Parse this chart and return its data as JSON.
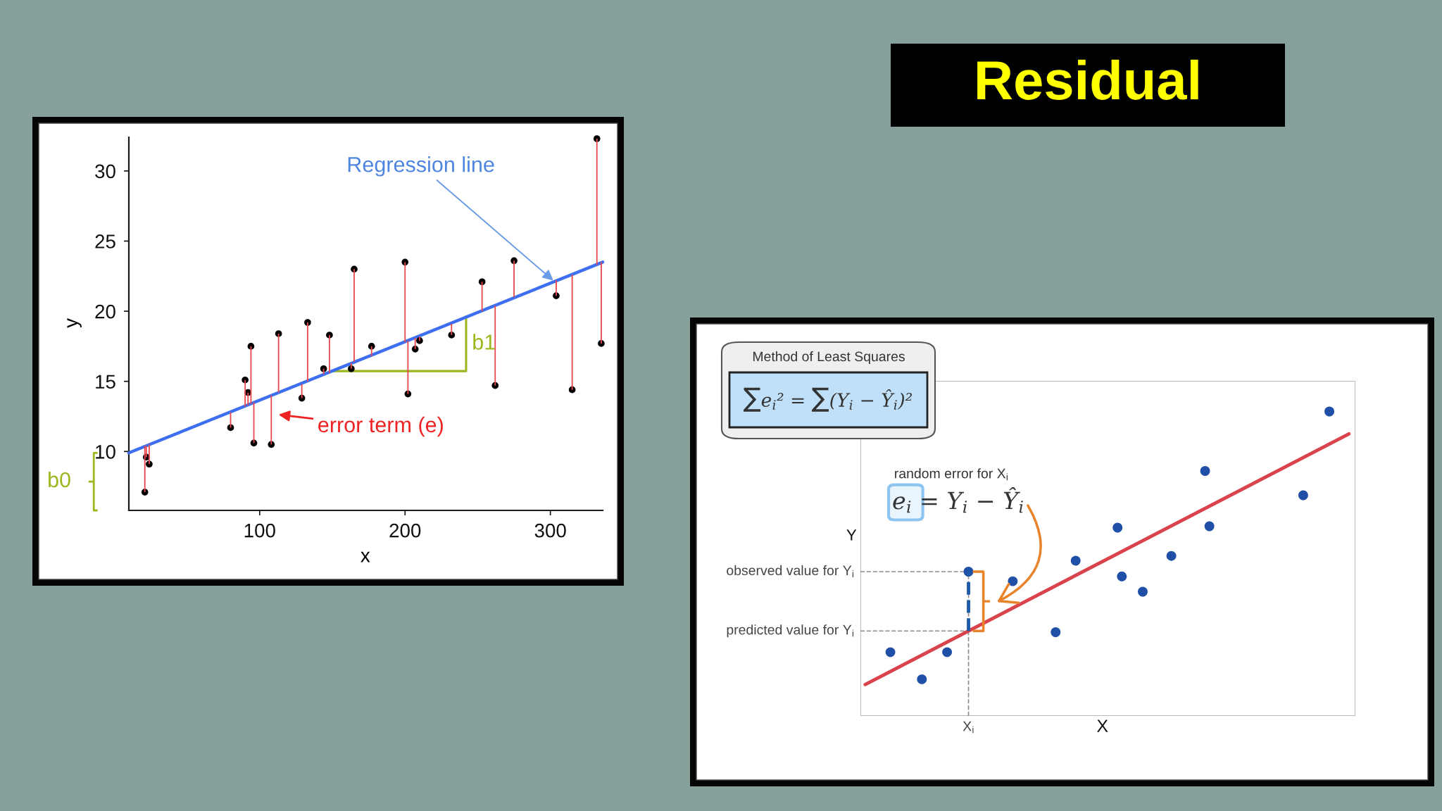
{
  "chart_data": [
    {
      "type": "other",
      "title": "Residual"
    },
    {
      "type": "scatter",
      "xlabel": "x",
      "ylabel": "y",
      "xlim": [
        10,
        336
      ],
      "ylim": [
        5.8,
        32.4
      ],
      "xticks": [
        100,
        200,
        300
      ],
      "yticks": [
        10,
        15,
        20,
        25,
        30
      ],
      "series": [
        {
          "type": "scatter",
          "color": "#000000",
          "marker": "circle",
          "x": [
            21,
            22,
            24,
            80,
            90,
            92,
            94,
            96,
            108,
            113,
            129,
            133,
            144,
            148,
            163,
            165,
            177,
            200,
            202,
            207,
            210,
            232,
            253,
            262,
            275,
            304,
            315,
            332,
            335
          ],
          "values": [
            7.1,
            9.6,
            9.1,
            11.7,
            15.1,
            14.2,
            17.5,
            10.6,
            10.5,
            18.4,
            13.8,
            19.2,
            15.9,
            18.3,
            15.9,
            23.0,
            17.5,
            23.5,
            14.1,
            17.3,
            17.9,
            18.3,
            22.1,
            14.7,
            23.6,
            21.1,
            14.4,
            32.3,
            17.7
          ],
          "errors": [
            [
              7.1,
              10.4
            ],
            [
              9.6,
              10.4
            ],
            [
              9.1,
              10.5
            ],
            [
              11.7,
              12.8
            ],
            [
              13.2,
              15.1
            ],
            [
              13.3,
              14.2
            ],
            [
              13.4,
              17.5
            ],
            [
              10.6,
              13.5
            ],
            [
              10.5,
              14.0
            ],
            [
              14.2,
              18.4
            ],
            [
              13.8,
              14.8
            ],
            [
              15.0,
              19.2
            ],
            [
              15.5,
              15.9
            ],
            [
              15.6,
              18.3
            ],
            [
              15.9,
              16.3
            ],
            [
              16.4,
              23.0
            ],
            [
              16.8,
              17.5
            ],
            [
              17.8,
              23.5
            ],
            [
              14.1,
              17.9
            ],
            [
              17.3,
              18.1
            ],
            [
              17.9,
              18.2
            ],
            [
              18.3,
              19.1
            ],
            [
              20.0,
              22.1
            ],
            [
              14.7,
              20.4
            ],
            [
              21.0,
              23.6
            ],
            [
              21.1,
              22.2
            ],
            [
              14.4,
              22.6
            ],
            [
              23.3,
              32.3
            ],
            [
              17.7,
              23.5
            ]
          ]
        },
        {
          "type": "line",
          "color": "#3d6ff0",
          "x": [
            10,
            336
          ],
          "values": [
            9.9,
            23.5
          ]
        }
      ],
      "annotations": [
        {
          "text": "Regression line",
          "x": 303,
          "y": 22.1
        },
        "error term (e)",
        "b0",
        {
          "text": "b1",
          "x": 242,
          "y": 19.6
        }
      ]
    },
    {
      "type": "other",
      "annotations": [
        "Method of Least Squares",
        "∑e$_{i}$² = ∑(Y$_{i}$ − Ŷ$_{i}$)²",
        "random error for X$_{i}$",
        "e$_{i}$ = Y$_{i}$ − Ŷ$_{i}$",
        "observed value for Y$_{i}$",
        "predicted value for Y$_{i}$",
        "X$_{i}$",
        "X",
        "Y"
      ]
    }
  ]
}
